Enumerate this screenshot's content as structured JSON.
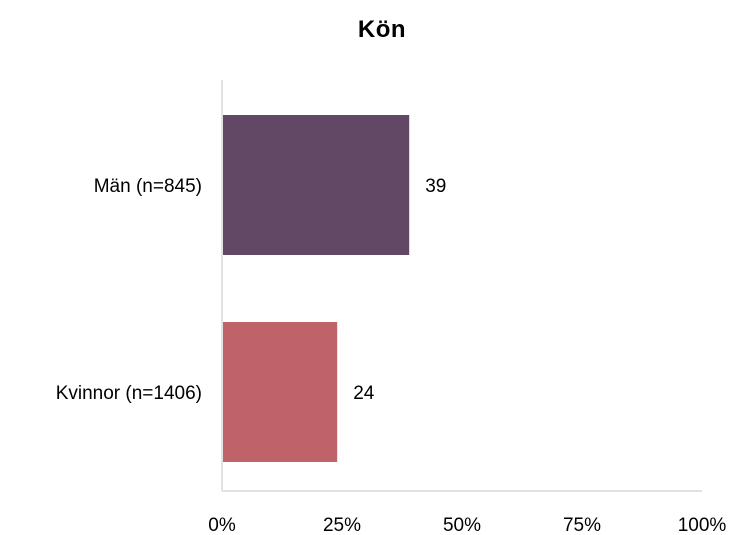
{
  "chart_data": {
    "type": "bar",
    "orientation": "horizontal",
    "title": "Kön",
    "categories": [
      "Män (n=845)",
      "Kvinnor (n=1406)"
    ],
    "values": [
      39,
      24
    ],
    "colors": [
      "#634866",
      "#c0626a"
    ],
    "x_ticks": [
      "0%",
      "25%",
      "50%",
      "75%",
      "100%"
    ],
    "xlim": [
      0,
      100
    ],
    "grid": false,
    "legend": "none",
    "xlabel": "",
    "ylabel": ""
  }
}
